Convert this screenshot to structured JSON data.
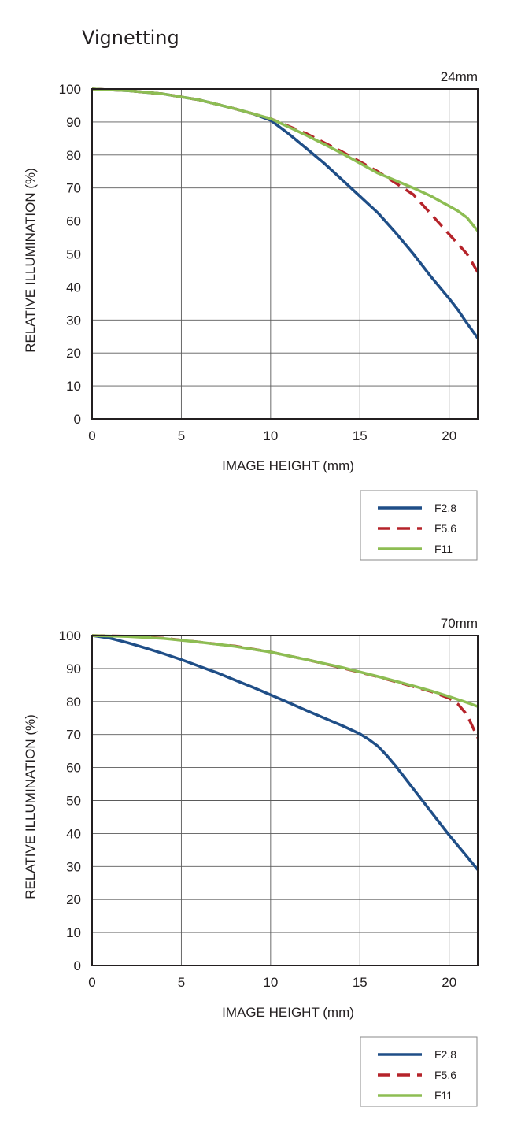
{
  "title": "Vignetting",
  "colors": {
    "F2.8": "#1f4e87",
    "F5.6": "#b5232a",
    "F11": "#8dbd53",
    "axis": "#231f20",
    "grid": "#5a5a5a"
  },
  "chart_data": [
    {
      "type": "line",
      "focal_length": "24mm",
      "xlabel": "IMAGE HEIGHT (mm)",
      "ylabel": "RELATIVE ILLUMINATION (%)",
      "xlim": [
        0,
        21.6
      ],
      "ylim": [
        0,
        100
      ],
      "xticks": [
        0,
        5,
        10,
        15,
        20
      ],
      "yticks": [
        0,
        10,
        20,
        30,
        40,
        50,
        60,
        70,
        80,
        90,
        100
      ],
      "grid": true,
      "legend_position": "below-right",
      "series": [
        {
          "name": "F2.8",
          "style": "solid",
          "x": [
            0,
            2,
            4,
            6,
            8,
            9,
            10,
            11,
            12,
            13,
            14,
            15,
            16,
            17,
            18,
            19,
            20,
            20.5,
            21,
            21.6
          ],
          "y": [
            100,
            99.5,
            98.5,
            96.7,
            94,
            92.5,
            90.5,
            86.5,
            82,
            77.5,
            72.5,
            67.5,
            62.5,
            56.5,
            50,
            43,
            36.5,
            33,
            29,
            24.5
          ]
        },
        {
          "name": "F5.6",
          "style": "dashed",
          "x": [
            0,
            2,
            4,
            6,
            8,
            10,
            12,
            14,
            16,
            17,
            18,
            19,
            20,
            20.5,
            21,
            21.6
          ],
          "y": [
            100,
            99.5,
            98.5,
            96.7,
            94,
            91,
            86.5,
            81,
            75,
            71.5,
            68,
            62,
            56,
            53,
            50,
            44.5
          ]
        },
        {
          "name": "F11",
          "style": "solid",
          "x": [
            0,
            2,
            4,
            6,
            8,
            10,
            12,
            14,
            16,
            18,
            19,
            20,
            20.5,
            21,
            21.6
          ],
          "y": [
            100,
            99.5,
            98.5,
            96.7,
            94,
            91,
            86,
            80.5,
            74.5,
            70,
            67.5,
            64.5,
            63,
            61,
            57
          ]
        }
      ]
    },
    {
      "type": "line",
      "focal_length": "70mm",
      "xlabel": "IMAGE HEIGHT (mm)",
      "ylabel": "RELATIVE ILLUMINATION (%)",
      "xlim": [
        0,
        21.6
      ],
      "ylim": [
        0,
        100
      ],
      "xticks": [
        0,
        5,
        10,
        15,
        20
      ],
      "yticks": [
        0,
        10,
        20,
        30,
        40,
        50,
        60,
        70,
        80,
        90,
        100
      ],
      "grid": true,
      "legend_position": "below-right",
      "series": [
        {
          "name": "F2.8",
          "style": "solid",
          "x": [
            0,
            1,
            2,
            3,
            4,
            5,
            6,
            7,
            8,
            9,
            10,
            11,
            12,
            13,
            14,
            15,
            15.5,
            16,
            16.5,
            17,
            18,
            19,
            20,
            21,
            21.6
          ],
          "y": [
            100,
            99.2,
            97.8,
            96.2,
            94.5,
            92.7,
            90.7,
            88.7,
            86.5,
            84.3,
            82,
            79.7,
            77.3,
            75,
            72.7,
            70.2,
            68.5,
            66.5,
            63.7,
            60.5,
            53.5,
            46.5,
            39.5,
            33,
            29
          ]
        },
        {
          "name": "F5.6",
          "style": "dashed",
          "x": [
            0,
            2,
            4,
            6,
            8,
            10,
            12,
            14,
            16,
            18,
            19,
            20,
            20.5,
            21,
            21.6
          ],
          "y": [
            100,
            99.8,
            99.2,
            98,
            96.8,
            95,
            92.7,
            90.2,
            87.5,
            84.5,
            83,
            81,
            79.2,
            76,
            69
          ]
        },
        {
          "name": "F11",
          "style": "solid",
          "x": [
            0,
            2,
            4,
            6,
            8,
            10,
            12,
            14,
            16,
            18,
            19,
            20,
            21,
            21.6
          ],
          "y": [
            100,
            99.7,
            99.1,
            98,
            96.7,
            95,
            92.7,
            90.3,
            87.6,
            84.7,
            83.2,
            81.5,
            79.7,
            78.5
          ]
        }
      ]
    }
  ]
}
